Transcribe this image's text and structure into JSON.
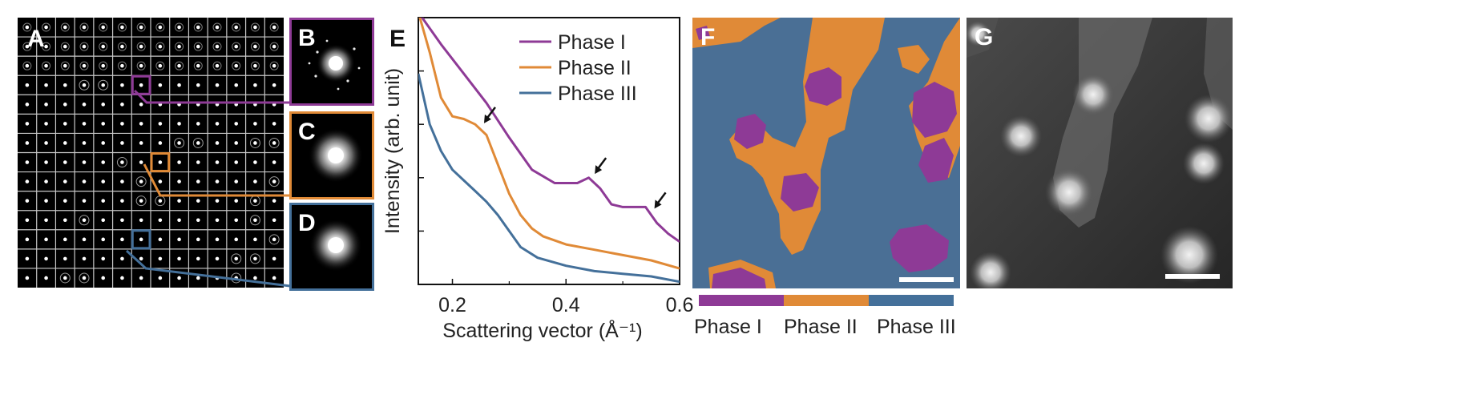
{
  "panel_labels": {
    "A": "A",
    "B": "B",
    "C": "C",
    "D": "D",
    "E": "E",
    "F": "F",
    "G": "G"
  },
  "colors": {
    "phase_I": "#8e3a96",
    "phase_II": "#e08a37",
    "phase_III": "#44709a",
    "grid": "#c8c8c8"
  },
  "icons": {
    "arrow": "black-arrow-icon",
    "scalebar": "scale-bar"
  },
  "panel_f": {
    "colorbar_labels": [
      "Phase I",
      "Phase II",
      "Phase III"
    ]
  },
  "chart_data": {
    "type": "line",
    "xlabel": "Scattering vector (Å⁻¹)",
    "ylabel": "Intensity (arb. unit)",
    "xlim": [
      0.14,
      0.6
    ],
    "ylim": [
      0,
      1
    ],
    "xticks": [
      0.2,
      0.4,
      0.6
    ],
    "xtick_labels": [
      "0.2",
      "0.4",
      "0.6"
    ],
    "legend_position": "top-right",
    "series": [
      {
        "name": "Phase I",
        "color": "#8e3a96",
        "x": [
          0.14,
          0.18,
          0.22,
          0.26,
          0.3,
          0.34,
          0.38,
          0.42,
          0.44,
          0.46,
          0.48,
          0.5,
          0.52,
          0.54,
          0.56,
          0.58,
          0.6
        ],
        "y": [
          1.02,
          0.9,
          0.79,
          0.68,
          0.55,
          0.43,
          0.38,
          0.38,
          0.4,
          0.36,
          0.3,
          0.29,
          0.29,
          0.29,
          0.23,
          0.19,
          0.16
        ]
      },
      {
        "name": "Phase II",
        "color": "#e08a37",
        "x": [
          0.14,
          0.16,
          0.18,
          0.2,
          0.22,
          0.24,
          0.26,
          0.28,
          0.3,
          0.32,
          0.34,
          0.36,
          0.4,
          0.45,
          0.5,
          0.55,
          0.6
        ],
        "y": [
          1.02,
          0.87,
          0.7,
          0.63,
          0.62,
          0.6,
          0.56,
          0.45,
          0.34,
          0.26,
          0.21,
          0.18,
          0.15,
          0.13,
          0.11,
          0.09,
          0.06
        ]
      },
      {
        "name": "Phase III",
        "color": "#44709a",
        "x": [
          0.14,
          0.16,
          0.18,
          0.2,
          0.22,
          0.24,
          0.26,
          0.28,
          0.3,
          0.32,
          0.35,
          0.4,
          0.45,
          0.5,
          0.55,
          0.6
        ],
        "y": [
          0.79,
          0.6,
          0.5,
          0.43,
          0.39,
          0.35,
          0.31,
          0.26,
          0.2,
          0.14,
          0.1,
          0.07,
          0.05,
          0.04,
          0.03,
          0.01
        ]
      }
    ],
    "annotations": [
      {
        "type": "arrow",
        "series": "Phase II",
        "x": 0.25
      },
      {
        "type": "arrow",
        "series": "Phase I",
        "x": 0.445
      },
      {
        "type": "arrow",
        "series": "Phase I",
        "x": 0.55
      }
    ]
  }
}
